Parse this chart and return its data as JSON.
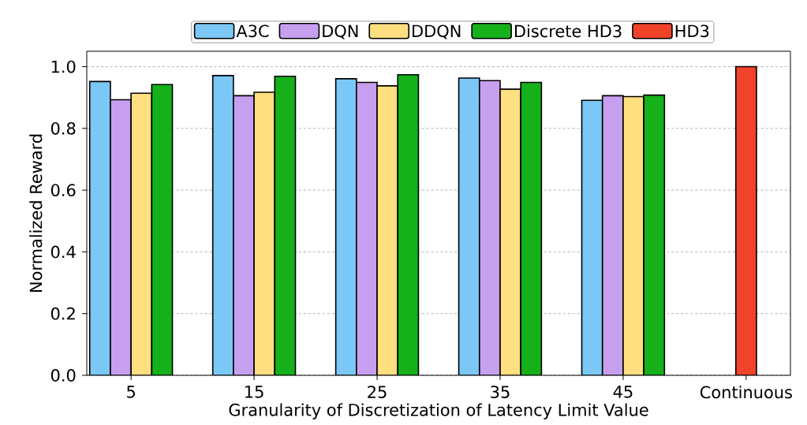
{
  "chart_data": {
    "type": "bar",
    "xlabel": "Granularity of Discretization of Latency Limit Value",
    "ylabel": "Normalized Reward",
    "categories": [
      "5",
      "15",
      "25",
      "35",
      "45",
      "Continuous"
    ],
    "series": [
      {
        "name": "A3C",
        "color": "#7bc8f6",
        "values": [
          0.952,
          0.971,
          0.961,
          0.963,
          0.891,
          null
        ]
      },
      {
        "name": "DQN",
        "color": "#c79fef",
        "values": [
          0.893,
          0.906,
          0.949,
          0.955,
          0.906,
          null
        ]
      },
      {
        "name": "DDQN",
        "color": "#ffdf7f",
        "values": [
          0.914,
          0.917,
          0.938,
          0.927,
          0.903,
          null
        ]
      },
      {
        "name": "Discrete HD3",
        "color": "#15b01a",
        "values": [
          0.942,
          0.969,
          0.974,
          0.949,
          0.908,
          null
        ]
      },
      {
        "name": "HD3",
        "color": "#f0432a",
        "values": [
          null,
          null,
          null,
          null,
          null,
          1.0
        ]
      }
    ],
    "ylim": [
      0,
      1.05
    ],
    "yticks": [
      {
        "value": 0,
        "label": "0.0"
      },
      {
        "value": 0.2,
        "label": "0.2"
      },
      {
        "value": 0.4,
        "label": "0.4"
      },
      {
        "value": 0.6,
        "label": "0.6"
      },
      {
        "value": 0.8,
        "label": "0.8"
      },
      {
        "value": 1.0,
        "label": "1.0"
      }
    ],
    "grid": "y",
    "legend": "top"
  }
}
